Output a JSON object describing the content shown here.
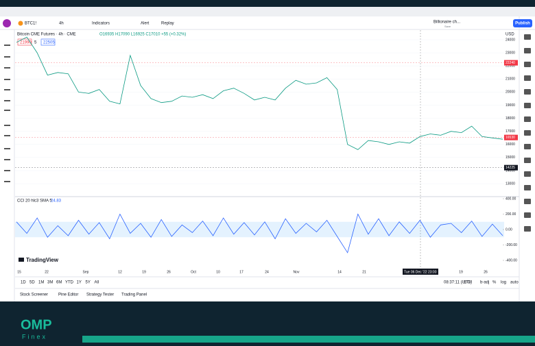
{
  "toolbar": {
    "symbol": "BTC1!",
    "interval": "4h",
    "indicators": "Indicators",
    "alert": "Alert",
    "replay": "Replay",
    "layout_name": "Billionaire ch...",
    "save": "Save",
    "publish": "Publish"
  },
  "legend": {
    "title": "Bitcoin CME Futures · 4h · CME",
    "ohlc": "O16935 H17090 L16925 C17010 +55 (+0.32%)",
    "bid": "21990",
    "spread": "5",
    "ask": "22505"
  },
  "chart": {
    "price": [
      23800,
      24200,
      23000,
      21300,
      21500,
      21400,
      20000,
      19900,
      20200,
      19300,
      19100,
      22800,
      20500,
      19500,
      19200,
      19300,
      19700,
      19600,
      19800,
      19500,
      20100,
      20300,
      19900,
      19400,
      19600,
      19400,
      20300,
      20900,
      20600,
      20700,
      21100,
      20200,
      16000,
      15600,
      16300,
      16200,
      16000,
      16200,
      16100,
      16600,
      16800,
      16700,
      17000,
      16900,
      17400,
      16600,
      16500,
      16400
    ],
    "price_ticks": [
      24000,
      23000,
      22000,
      21000,
      20000,
      19000,
      18000,
      17000,
      16000,
      15000,
      14000,
      13000
    ],
    "price_labels": [
      {
        "value": 22240,
        "label": "22240"
      },
      {
        "value": 16530,
        "label": "16530"
      },
      {
        "value": 14225,
        "label": "14225"
      }
    ],
    "currency": "USD",
    "cci_title": "CCI 20 hlc3 SMA 5",
    "cci_value": "24.83",
    "cci": [
      100,
      -50,
      150,
      -100,
      50,
      -80,
      120,
      -60,
      90,
      -120,
      200,
      -50,
      80,
      -100,
      130,
      -90,
      60,
      -40,
      110,
      -80,
      150,
      -60,
      90,
      -70,
      100,
      -120,
      140,
      -50,
      80,
      -30,
      120,
      -90,
      -300,
      200,
      -60,
      140,
      -80,
      100,
      -50,
      120,
      -100,
      60,
      80,
      -40,
      110,
      -90,
      70,
      -80
    ],
    "cci_ticks": [
      {
        "value": 400,
        "label": "400.00"
      },
      {
        "value": 200,
        "label": "200.00"
      },
      {
        "value": 0,
        "label": "0.00"
      },
      {
        "value": -200,
        "label": "-200.00"
      },
      {
        "value": -400,
        "label": "-400.00"
      }
    ],
    "x_labels": [
      "15",
      "22",
      "Sep",
      "12",
      "19",
      "26",
      "Oct",
      "10",
      "17",
      "24",
      "Nov",
      "14",
      "21",
      "19",
      "26"
    ],
    "crosshair_date": "Tue 06 Dec '22  23:00",
    "brand": "TradingView"
  },
  "bottom": {
    "ranges": [
      "1D",
      "5D",
      "1M",
      "3M",
      "6M",
      "YTD",
      "1Y",
      "5Y",
      "All"
    ],
    "time": "08:37:11 (UTC)",
    "session": "ETH",
    "adj": "b-adj",
    "percent": "%",
    "log": "log",
    "auto": "auto"
  },
  "tabs": [
    "Stock Screener",
    "Pine Editor",
    "Strategy Tester",
    "Trading Panel"
  ],
  "footer": {
    "logo": "OMP",
    "logo_sub": "Finex"
  }
}
